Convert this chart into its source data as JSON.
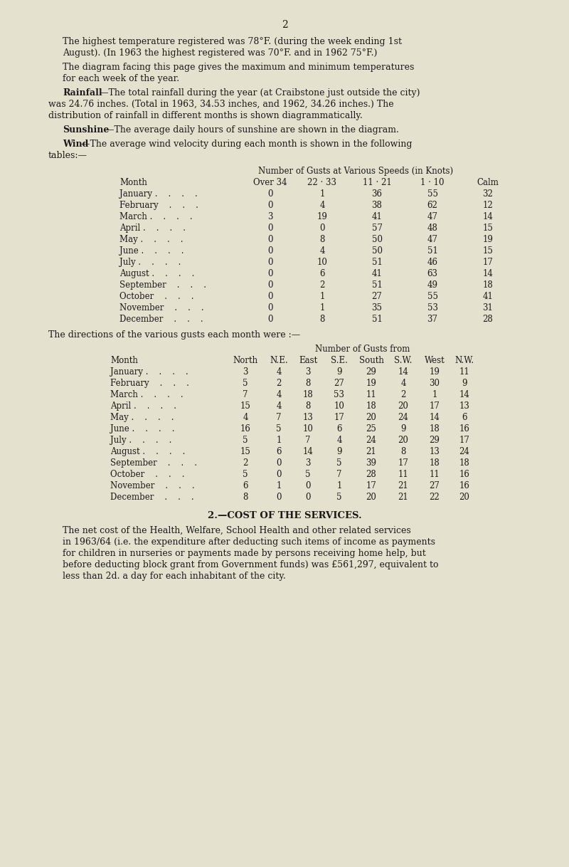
{
  "bg_color": "#e5e1cf",
  "text_color": "#1a1a1a",
  "page_number": "2",
  "para1_lines": [
    "The highest temperature registered was 78°F. (during the week ending 1st",
    "August). (In 1963 the highest registered was 70°F. and in 1962 75°F.)"
  ],
  "para2_lines": [
    "The diagram facing this page gives the maximum and minimum temperatures",
    "for each week of the year."
  ],
  "para3_bold": "Rainfall",
  "para3_lines": [
    "—The total rainfall during the year (at Craibstone just outside the city)",
    "was 24.76 inches. (Total in 1963, 34.53 inches, and 1962, 34.26 inches.) The",
    "distribution of rainfall in different months is shown diagrammatically."
  ],
  "para4_bold": "Sunshine",
  "para4_line": "—The average daily hours of sunshine are shown in the diagram.",
  "para5_bold": "Wind",
  "para5_lines": [
    "—The average wind velocity during each month is shown in the following",
    "tables:—"
  ],
  "table1_title": "Number of Gusts at Various Speeds (in Knots)",
  "table1_col_headers": [
    "Month",
    "Over 34",
    "22 · 33",
    "11 · 21",
    "1 · 10",
    "Calm"
  ],
  "table1_months": [
    "January .    .    .    .",
    "February    .    .    .",
    "March .    .    .    .",
    "April .    .    .    .",
    "May .    .    .    .",
    "June .    .    .    .",
    "July .    .    .    .",
    "August .    .    .    .",
    "September    .    .    .",
    "October    .    .    .",
    "November    .    .    .",
    "December    .    .    ."
  ],
  "table1_data": [
    [
      0,
      1,
      36,
      55,
      32
    ],
    [
      0,
      4,
      38,
      62,
      12
    ],
    [
      3,
      19,
      41,
      47,
      14
    ],
    [
      0,
      0,
      57,
      48,
      15
    ],
    [
      0,
      8,
      50,
      47,
      19
    ],
    [
      0,
      4,
      50,
      51,
      15
    ],
    [
      0,
      10,
      51,
      46,
      17
    ],
    [
      0,
      6,
      41,
      63,
      14
    ],
    [
      0,
      2,
      51,
      49,
      18
    ],
    [
      0,
      1,
      27,
      55,
      41
    ],
    [
      0,
      1,
      35,
      53,
      31
    ],
    [
      0,
      8,
      51,
      37,
      28
    ]
  ],
  "table2_intro": "The directions of the various gusts each month were :—",
  "table2_title": "Number of Gusts from",
  "table2_col_headers": [
    "Month",
    "North",
    "N.E.",
    "East",
    "S.E.",
    "South",
    "S.W.",
    "West",
    "N.W."
  ],
  "table2_months": [
    "January .    .    .    .",
    "February    .    .    .",
    "March .    .    .    .",
    "April .    .    .    .",
    "May .    .    .    .",
    "June .    .    .    .",
    "July .    .    .    .",
    "August .    .    .    .",
    "September    .    .    .",
    "October    .    .    .",
    "November    .    .    .",
    "December    .    .    ."
  ],
  "table2_data": [
    [
      3,
      4,
      3,
      9,
      29,
      14,
      19,
      11
    ],
    [
      5,
      2,
      8,
      27,
      19,
      4,
      30,
      9
    ],
    [
      7,
      4,
      18,
      53,
      11,
      2,
      1,
      14
    ],
    [
      15,
      4,
      8,
      10,
      18,
      20,
      17,
      13
    ],
    [
      4,
      7,
      13,
      17,
      20,
      24,
      14,
      6
    ],
    [
      16,
      5,
      10,
      6,
      25,
      9,
      18,
      16
    ],
    [
      5,
      1,
      7,
      4,
      24,
      20,
      29,
      17
    ],
    [
      15,
      6,
      14,
      9,
      21,
      8,
      13,
      24
    ],
    [
      2,
      0,
      3,
      5,
      39,
      17,
      18,
      18
    ],
    [
      5,
      0,
      5,
      7,
      28,
      11,
      11,
      16
    ],
    [
      6,
      1,
      0,
      1,
      17,
      21,
      27,
      16
    ],
    [
      8,
      0,
      0,
      5,
      20,
      21,
      22,
      20
    ]
  ],
  "section2_title": "2.—COST OF THE SERVICES.",
  "section2_lines": [
    "The net cost of the Health, Welfare, School Health and other related services",
    "in 1963/64 (i.e. the expenditure after deducting such items of income as payments",
    "for children in nurseries or payments made by persons receiving home help, but",
    "before deducting block grant from Government funds) was £561,297, equivalent to",
    "less than 2d. a day for each inhabitant of the city."
  ]
}
